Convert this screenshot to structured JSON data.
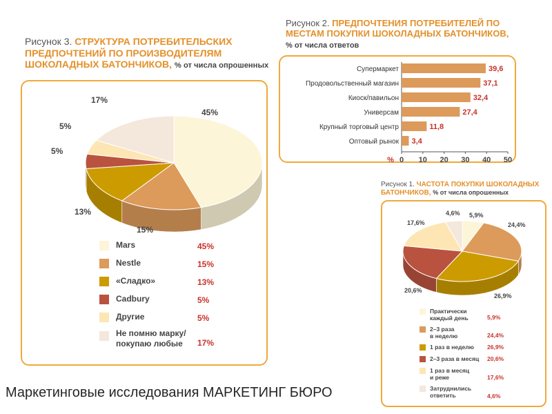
{
  "footer": "Маркетинговые исследования МАРКЕТИНГ БЮРО",
  "colors": {
    "mars": "#fdf5d8",
    "nestle": "#dc9a5b",
    "sladko": "#cc9b00",
    "cadbury": "#b9533f",
    "drugie": "#fde6b3",
    "ne_pomnyu": "#f4e7dc",
    "bar": "#dc9a5b",
    "accent": "#e3902a",
    "value": "#c8322b",
    "border": "#f0a83b"
  },
  "chart_data": [
    {
      "type": "pie",
      "title_prefix": "Рисунок 3.",
      "title_line1": "СТРУКТУРА ПОТРЕБИТЕЛЬСКИХ",
      "title_line2": "ПРЕДПОЧТЕНИЙ ПО ПРОИЗВОДИТЕЛЯМ",
      "title_line3": "ШОКОЛАДНЫХ БАТОНЧИКОВ,",
      "title_note": "% от числа опрошенных",
      "slices": [
        {
          "label": "Mars",
          "value": 45,
          "display": "45%"
        },
        {
          "label": "Nestle",
          "value": 15,
          "display": "15%"
        },
        {
          "label": "«Сладко»",
          "value": 13,
          "display": "13%"
        },
        {
          "label": "Cadbury",
          "value": 5,
          "display": "5%"
        },
        {
          "label": "Другие",
          "value": 5,
          "display": "5%"
        },
        {
          "label_line1": "Не помню марку/",
          "label_line2": "покупаю любые",
          "value": 17,
          "display": "17%"
        }
      ]
    },
    {
      "type": "bar",
      "orientation": "horizontal",
      "title_prefix": "Рисунок 2.",
      "title_line1": "ПРЕДПОЧТЕНИЯ ПОТРЕБИТЕЛЕЙ ПО",
      "title_line2": "МЕСТАМ ПОКУПКИ ШОКОЛАДНЫХ БАТОНЧИКОВ,",
      "title_note": "% от числа ответов",
      "categories": [
        "Супермаркет",
        "Продовольственный магазин",
        "Киоск/павильон",
        "Универсам",
        "Крупный торговый центр",
        "Оптовый рынок"
      ],
      "values": [
        39.6,
        37.1,
        32.4,
        27.4,
        11.8,
        3.4
      ],
      "value_labels": [
        "39,6",
        "37,1",
        "32,4",
        "27,4",
        "11,8",
        "3,4"
      ],
      "axis_label": "%",
      "xlim": [
        0,
        50
      ],
      "ticks": [
        "0",
        "10",
        "20",
        "30",
        "40",
        "50"
      ]
    },
    {
      "type": "pie",
      "title_prefix": "Рисунок 1.",
      "title_line1": "ЧАСТОТА ПОКУПКИ ШОКОЛАДНЫХ",
      "title_line2": "БАТОНЧИКОВ,",
      "title_note": "% от числа опрошенных",
      "slices": [
        {
          "label_line1": "Практически",
          "label_line2": "каждый день",
          "value": 5.9,
          "display": "5,9%"
        },
        {
          "label_line1": "2–3 раза",
          "label_line2": "в неделю",
          "value": 24.4,
          "display": "24,4%"
        },
        {
          "label_line1": "1 раз в неделю",
          "label_line2": "",
          "value": 26.9,
          "display": "26,9%"
        },
        {
          "label_line1": "2–3 раза в месяц",
          "label_line2": "",
          "value": 20.6,
          "display": "20,6%"
        },
        {
          "label_line1": "1 раз в месяц",
          "label_line2": "и реже",
          "value": 17.6,
          "display": "17,6%"
        },
        {
          "label_line1": "Затруднились",
          "label_line2": "ответить",
          "value": 4.6,
          "display": "4,6%"
        }
      ]
    }
  ]
}
